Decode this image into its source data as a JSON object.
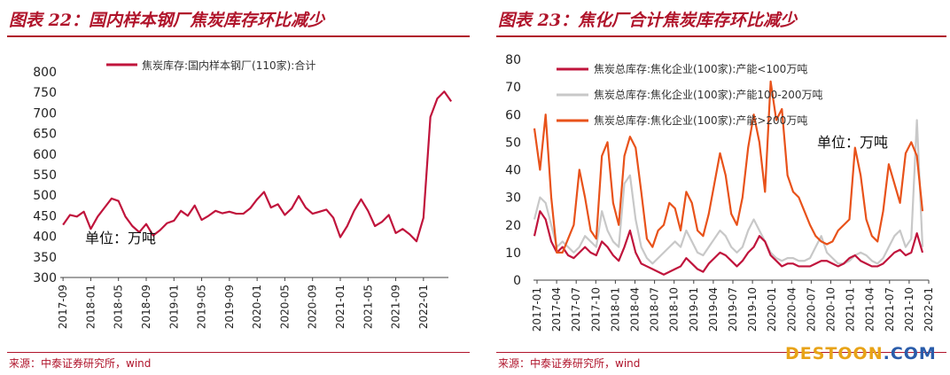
{
  "left": {
    "title": "图表 22：国内样本钢厂焦炭库存环比减少",
    "source": "来源：中泰证券研究所，wind",
    "chart_data": {
      "type": "line",
      "ylim": [
        300,
        800
      ],
      "yticks": [
        300,
        350,
        400,
        450,
        500,
        550,
        600,
        650,
        700,
        750,
        800
      ],
      "xticks": [
        "2017-09",
        "2018-01",
        "2018-05",
        "2018-09",
        "2019-01",
        "2019-05",
        "2019-09",
        "2020-01",
        "2020-05",
        "2020-09",
        "2021-01",
        "2021-05",
        "2021-09",
        "2022-01"
      ],
      "x_start": "2017-09",
      "x_end": "2022-03",
      "unit_note": "单位：万吨",
      "series": [
        {
          "name": "焦炭库存:国内样本钢厂(110家):合计",
          "color": "#c0143c",
          "values": [
            [
              "2017-09",
              428
            ],
            [
              "2017-10",
              452
            ],
            [
              "2017-11",
              448
            ],
            [
              "2017-12",
              460
            ],
            [
              "2018-01",
              418
            ],
            [
              "2018-02",
              448
            ],
            [
              "2018-03",
              470
            ],
            [
              "2018-04",
              492
            ],
            [
              "2018-05",
              486
            ],
            [
              "2018-06",
              448
            ],
            [
              "2018-07",
              425
            ],
            [
              "2018-08",
              410
            ],
            [
              "2018-09",
              430
            ],
            [
              "2018-10",
              402
            ],
            [
              "2018-11",
              415
            ],
            [
              "2018-12",
              432
            ],
            [
              "2019-01",
              438
            ],
            [
              "2019-02",
              462
            ],
            [
              "2019-03",
              450
            ],
            [
              "2019-04",
              475
            ],
            [
              "2019-05",
              440
            ],
            [
              "2019-06",
              450
            ],
            [
              "2019-07",
              462
            ],
            [
              "2019-08",
              456
            ],
            [
              "2019-09",
              460
            ],
            [
              "2019-10",
              455
            ],
            [
              "2019-11",
              455
            ],
            [
              "2019-12",
              468
            ],
            [
              "2020-01",
              490
            ],
            [
              "2020-02",
              508
            ],
            [
              "2020-03",
              470
            ],
            [
              "2020-04",
              478
            ],
            [
              "2020-05",
              452
            ],
            [
              "2020-06",
              468
            ],
            [
              "2020-07",
              498
            ],
            [
              "2020-08",
              470
            ],
            [
              "2020-09",
              455
            ],
            [
              "2020-10",
              460
            ],
            [
              "2020-11",
              465
            ],
            [
              "2020-12",
              445
            ],
            [
              "2021-01",
              398
            ],
            [
              "2021-02",
              425
            ],
            [
              "2021-03",
              462
            ],
            [
              "2021-04",
              490
            ],
            [
              "2021-05",
              462
            ],
            [
              "2021-06",
              425
            ],
            [
              "2021-07",
              435
            ],
            [
              "2021-08",
              452
            ],
            [
              "2021-09",
              408
            ],
            [
              "2021-10",
              418
            ],
            [
              "2021-11",
              405
            ],
            [
              "2021-12",
              388
            ],
            [
              "2022-01",
              445
            ],
            [
              "2022-02",
              690
            ],
            [
              "2022-03",
              735
            ],
            [
              "2022-04",
              752
            ],
            [
              "2022-05",
              728
            ]
          ]
        }
      ]
    }
  },
  "right": {
    "title": "图表 23：焦化厂合计焦炭库存环比减少",
    "source": "来源：中泰证券研究所，wind",
    "chart_data": {
      "type": "line",
      "ylim": [
        0,
        80
      ],
      "yticks": [
        0,
        10,
        20,
        30,
        40,
        50,
        60,
        70,
        80
      ],
      "xticks": [
        "2017-01",
        "2017-04",
        "2017-07",
        "2017-10",
        "2018-01",
        "2018-04",
        "2018-07",
        "2018-10",
        "2019-01",
        "2019-04",
        "2019-07",
        "2019-10",
        "2020-01",
        "2020-04",
        "2020-07",
        "2020-10",
        "2021-01",
        "2021-04",
        "2021-07",
        "2021-10",
        "2022-01"
      ],
      "unit_note": "单位：万吨",
      "series": [
        {
          "name": "焦炭总库存:焦化企业(100家):产能<100万吨",
          "color": "#c0143c",
          "values": [
            16,
            25,
            22,
            14,
            10,
            12,
            9,
            8,
            10,
            12,
            10,
            9,
            14,
            12,
            9,
            7,
            12,
            18,
            10,
            6,
            5,
            4,
            3,
            2,
            3,
            4,
            5,
            8,
            6,
            4,
            3,
            6,
            8,
            10,
            9,
            7,
            5,
            7,
            10,
            12,
            16,
            14,
            9,
            7,
            5,
            6,
            6,
            5,
            5,
            5,
            6,
            7,
            7,
            6,
            5,
            6,
            8,
            9,
            7,
            6,
            5,
            5,
            6,
            8,
            10,
            11,
            9,
            10,
            17,
            10
          ]
        },
        {
          "name": "焦炭总库存:焦化企业(100家):产能100-200万吨",
          "color": "#c8c8c8",
          "values": [
            22,
            30,
            28,
            20,
            12,
            14,
            12,
            10,
            12,
            16,
            14,
            12,
            25,
            18,
            14,
            12,
            35,
            38,
            22,
            12,
            8,
            6,
            8,
            10,
            12,
            14,
            12,
            18,
            14,
            10,
            9,
            12,
            15,
            18,
            16,
            12,
            10,
            12,
            18,
            22,
            18,
            14,
            10,
            8,
            7,
            8,
            8,
            7,
            7,
            8,
            12,
            16,
            10,
            8,
            6,
            6,
            7,
            9,
            10,
            9,
            7,
            6,
            8,
            12,
            16,
            18,
            12,
            15,
            58,
            12
          ]
        },
        {
          "name": "焦炭总库存:焦化企业(100家):产能>200万吨",
          "color": "#e8521a",
          "values": [
            55,
            40,
            60,
            30,
            10,
            10,
            15,
            20,
            40,
            30,
            18,
            15,
            45,
            50,
            28,
            20,
            45,
            52,
            48,
            32,
            15,
            12,
            18,
            20,
            28,
            26,
            18,
            32,
            28,
            18,
            16,
            24,
            35,
            46,
            38,
            24,
            20,
            30,
            48,
            60,
            50,
            32,
            72,
            58,
            62,
            38,
            32,
            30,
            25,
            20,
            16,
            14,
            13,
            14,
            18,
            20,
            22,
            48,
            38,
            22,
            16,
            14,
            25,
            42,
            35,
            28,
            46,
            50,
            45,
            25
          ]
        }
      ]
    }
  },
  "watermark": {
    "part_a": "DESTOON",
    "part_b": ".COM"
  }
}
